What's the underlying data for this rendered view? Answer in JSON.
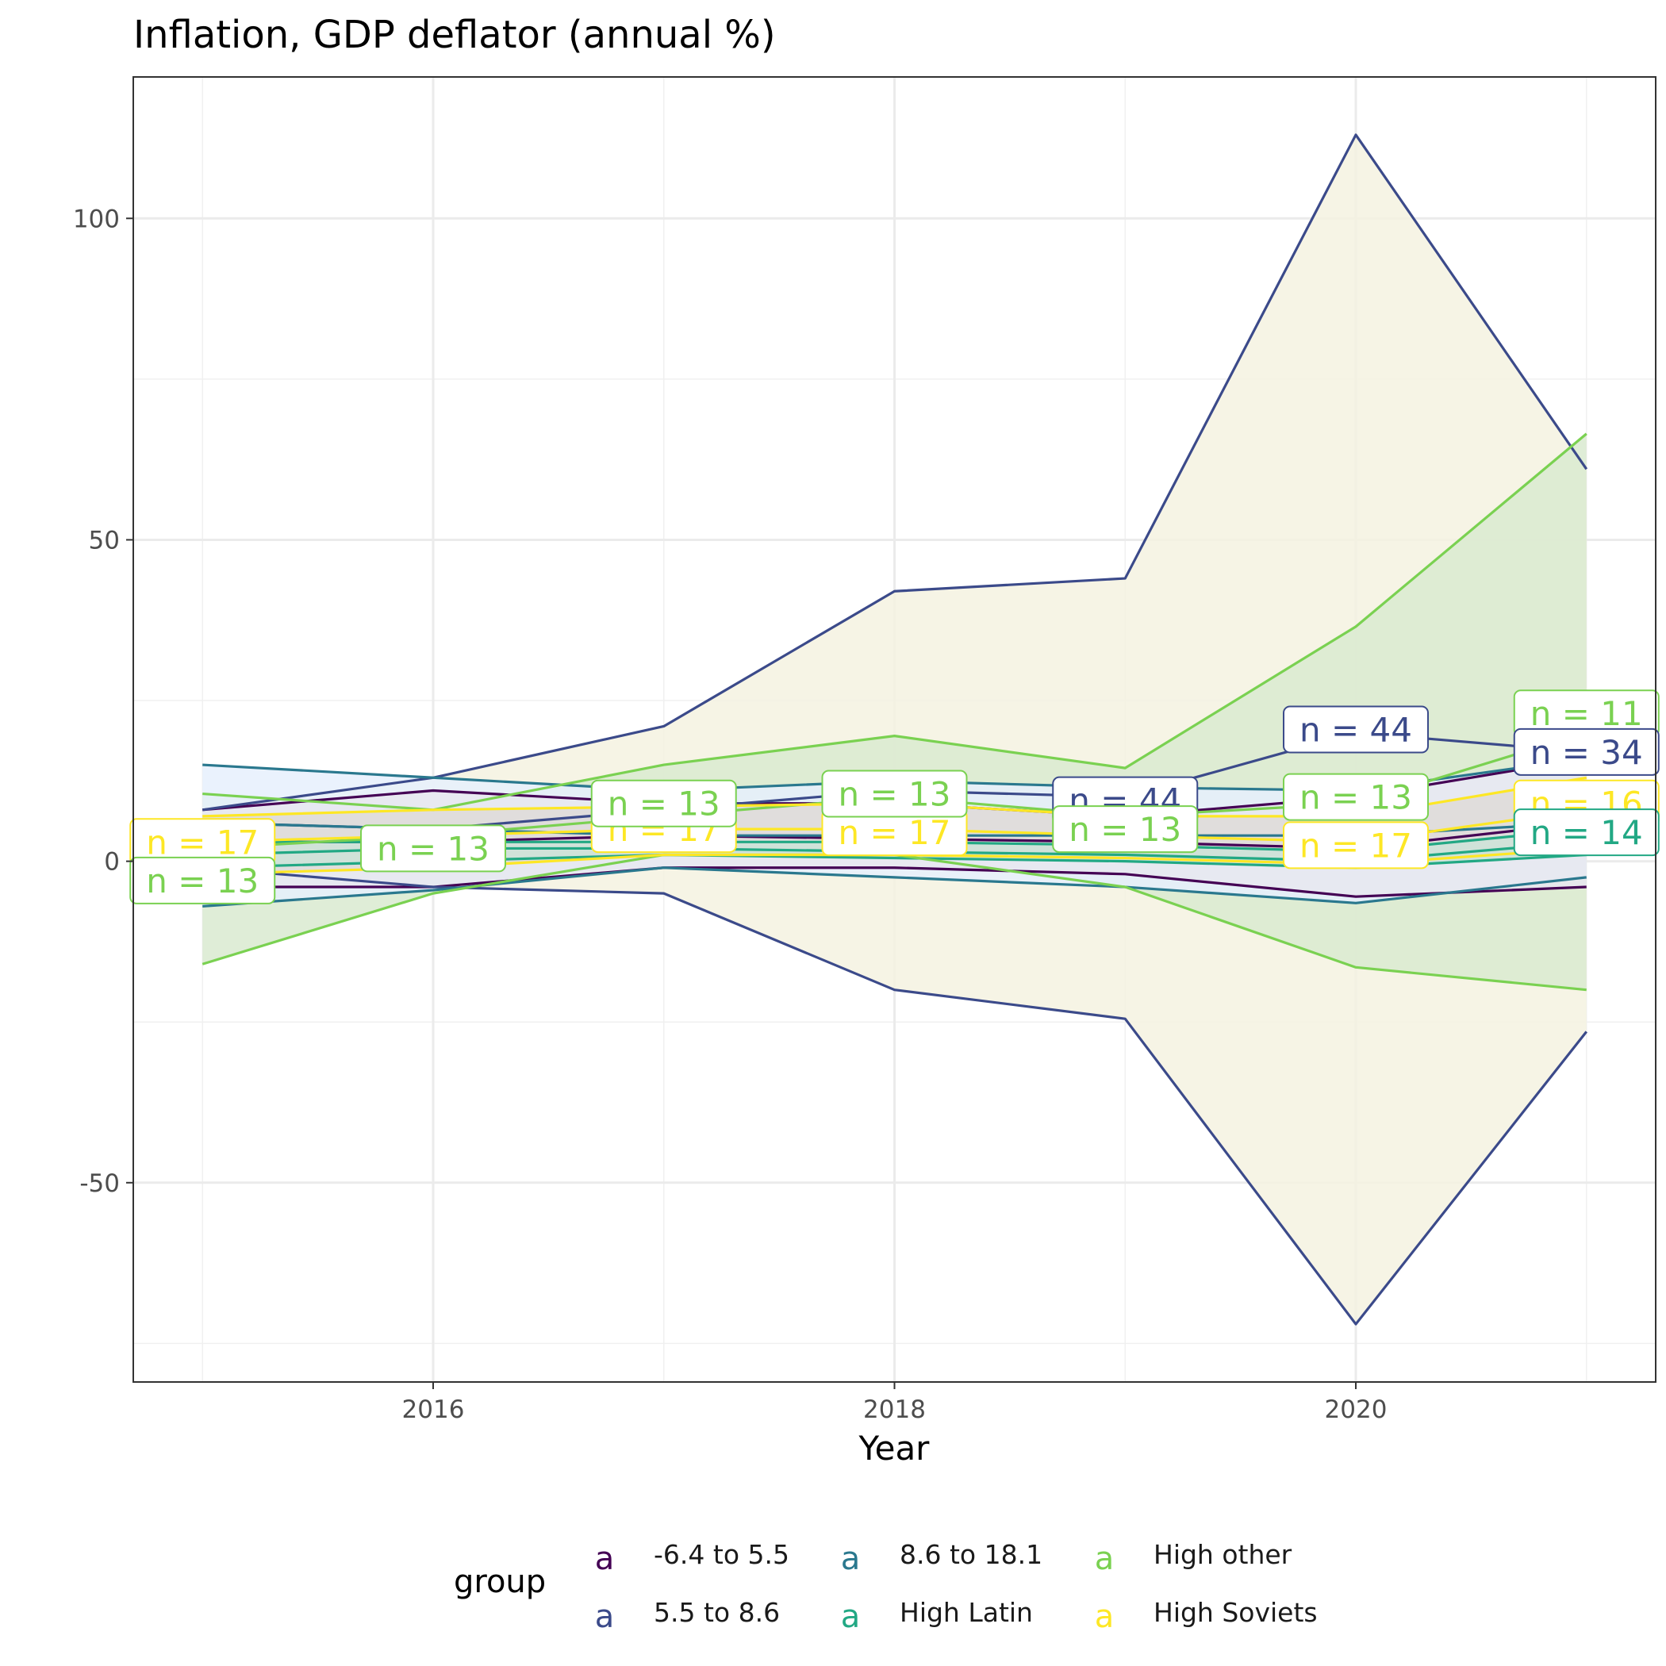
{
  "chart_data": {
    "type": "line",
    "title": "Inflation, GDP deflator (annual %)",
    "xlabel": "Year",
    "ylabel": "",
    "x": [
      2015,
      2016,
      2017,
      2018,
      2019,
      2020,
      2021
    ],
    "xlim": [
      2014.7,
      2021.3
    ],
    "ylim": [
      -81,
      122
    ],
    "x_ticks": [
      2016,
      2018,
      2020
    ],
    "x_tick_labels": [
      "2016",
      "2018",
      "2020"
    ],
    "y_ticks": [
      -50,
      0,
      50,
      100
    ],
    "y_tick_labels": [
      "-50",
      "0",
      "50",
      "100"
    ],
    "grid": true,
    "legend": {
      "title": "group",
      "position": "bottom",
      "key_glyph": "a",
      "entries": [
        "-6.4 to 5.5",
        "5.5 to 8.6",
        "8.6 to 18.1",
        "High Latin",
        "High other",
        "High Soviets"
      ]
    },
    "series": [
      {
        "name": "-6.4 to 5.5",
        "color": "#440154",
        "fill": "#e8e8f0",
        "upper": [
          8,
          11,
          9,
          9,
          7,
          10,
          16
        ],
        "median": [
          3,
          3,
          4,
          3.5,
          3,
          2,
          6
        ],
        "lower": [
          -4,
          -4,
          -1,
          -1,
          -2,
          -5.5,
          -4
        ]
      },
      {
        "name": "5.5 to 8.6",
        "color": "#3b4a8a",
        "fill": "#f5f2e0",
        "upper": [
          8,
          13,
          21,
          42,
          44,
          113,
          61
        ],
        "median": [
          6,
          5,
          8,
          11,
          10,
          20,
          17
        ],
        "lower": [
          -1,
          -4,
          -5,
          -20,
          -24.5,
          -72,
          -26.5
        ]
      },
      {
        "name": "8.6 to 18.1",
        "color": "#2a788e",
        "fill": "#e6f0fd",
        "upper": [
          15,
          13,
          11,
          12.5,
          11.5,
          11,
          16
        ],
        "median": [
          6,
          5,
          4,
          4,
          4,
          4,
          6
        ],
        "lower": [
          -7,
          -4.5,
          -1,
          -2.5,
          -4,
          -6.5,
          -2.5
        ]
      },
      {
        "name": "High Latin",
        "color": "#22a884",
        "fill": "#cde3d8",
        "upper": [
          3,
          3,
          3,
          3,
          2.5,
          1.5,
          5
        ],
        "median": [
          1,
          2,
          2,
          1.5,
          1,
          0,
          3
        ],
        "lower": [
          -1,
          0,
          1,
          0.5,
          0,
          -1,
          1
        ]
      },
      {
        "name": "High other",
        "color": "#7ad151",
        "fill": "#d9ead0",
        "upper": [
          10.5,
          8,
          15,
          19.5,
          14.5,
          36.5,
          66.5
        ],
        "median": [
          2,
          4,
          7,
          10,
          7,
          9,
          20
        ],
        "lower": [
          -16,
          -5,
          1,
          1,
          -4,
          -16.5,
          -20
        ]
      },
      {
        "name": "High Soviets",
        "color": "#fde725",
        "fill": "#dedad8",
        "upper": [
          7,
          8,
          8.5,
          9,
          7,
          7,
          13
        ],
        "median": [
          3,
          4,
          5,
          5,
          4,
          3,
          8
        ],
        "lower": [
          -2,
          -1,
          1,
          1,
          0.5,
          -0.5,
          2
        ]
      }
    ],
    "labels": [
      {
        "text": "n = 17",
        "x": 2015,
        "y": 3,
        "color": "#fde725"
      },
      {
        "text": "n = 13",
        "x": 2015,
        "y": -3,
        "color": "#7ad151"
      },
      {
        "text": "n = 13",
        "x": 2016,
        "y": 2,
        "color": "#7ad151"
      },
      {
        "text": "n = 17",
        "x": 2017,
        "y": 5,
        "color": "#fde725"
      },
      {
        "text": "n = 13",
        "x": 2017,
        "y": 9,
        "color": "#7ad151"
      },
      {
        "text": "n = 17",
        "x": 2018,
        "y": 4.5,
        "color": "#fde725"
      },
      {
        "text": "n = 13",
        "x": 2018,
        "y": 10.5,
        "color": "#7ad151"
      },
      {
        "text": "n = 44",
        "x": 2019,
        "y": 9.5,
        "color": "#3b4a8a"
      },
      {
        "text": "n = 13",
        "x": 2019,
        "y": 5,
        "color": "#7ad151"
      },
      {
        "text": "n = 44",
        "x": 2020,
        "y": 20.5,
        "color": "#3b4a8a"
      },
      {
        "text": "n = 13",
        "x": 2020,
        "y": 10,
        "color": "#7ad151"
      },
      {
        "text": "n = 17",
        "x": 2020,
        "y": 2.5,
        "color": "#fde725"
      },
      {
        "text": "n = 11",
        "x": 2021,
        "y": 23,
        "color": "#7ad151"
      },
      {
        "text": "n = 34",
        "x": 2021,
        "y": 17,
        "color": "#3b4a8a"
      },
      {
        "text": "n = 16",
        "x": 2021,
        "y": 9,
        "color": "#fde725"
      },
      {
        "text": "n = 14",
        "x": 2021,
        "y": 4.5,
        "color": "#22a884"
      }
    ]
  }
}
